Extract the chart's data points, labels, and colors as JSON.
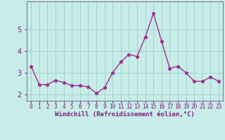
{
  "x": [
    0,
    1,
    2,
    3,
    4,
    5,
    6,
    7,
    8,
    9,
    10,
    11,
    12,
    13,
    14,
    15,
    16,
    17,
    18,
    19,
    20,
    21,
    22,
    23
  ],
  "y": [
    3.3,
    2.45,
    2.45,
    2.65,
    2.55,
    2.4,
    2.4,
    2.35,
    2.05,
    2.3,
    3.0,
    3.5,
    3.85,
    3.75,
    4.65,
    5.75,
    4.45,
    3.2,
    3.3,
    3.0,
    2.6,
    2.6,
    2.8,
    2.6
  ],
  "line_color": "#9B2D8E",
  "marker": "*",
  "bg_color": "#C8ECE8",
  "grid_color": "#A0D4D0",
  "xlabel": "Windchill (Refroidissement éolien,°C)",
  "xlabel_color": "#7B1A7A",
  "tick_color": "#7B1A7A",
  "spine_color": "#7B7B9B",
  "ylim": [
    1.7,
    6.3
  ],
  "yticks": [
    2,
    3,
    4,
    5
  ],
  "xtick_labels": [
    "0",
    "1",
    "2",
    "3",
    "4",
    "5",
    "6",
    "7",
    "8",
    "9",
    "10",
    "11",
    "12",
    "13",
    "14",
    "15",
    "16",
    "17",
    "18",
    "19",
    "20",
    "21",
    "22",
    "23"
  ],
  "figsize": [
    3.2,
    2.0
  ],
  "dpi": 100
}
